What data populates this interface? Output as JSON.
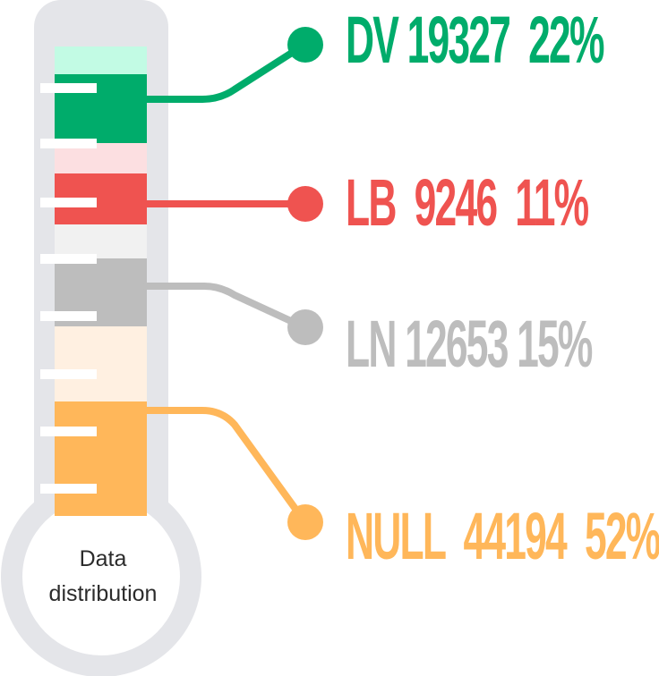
{
  "bulb": {
    "line1": "Data",
    "line2": "distribution"
  },
  "chart_data": {
    "type": "bar",
    "categories": [
      "DV",
      "LB",
      "LN",
      "NULL"
    ],
    "values": [
      19327,
      9246,
      12653,
      44194
    ],
    "percents": [
      "22%",
      "11%",
      "15%",
      "52%"
    ],
    "labels": [
      "DV 19327  22%",
      "LB  9246  11%",
      "LN 12653 15%",
      "NULL  44194  52%"
    ],
    "colors": [
      "#00ac6b",
      "#ef5350",
      "#bdbdbd",
      "#ffb75a"
    ],
    "light_colors": [
      "#c2fbe4",
      "#fcdfe1",
      "#f1f1f1",
      "#fff0e1"
    ]
  }
}
